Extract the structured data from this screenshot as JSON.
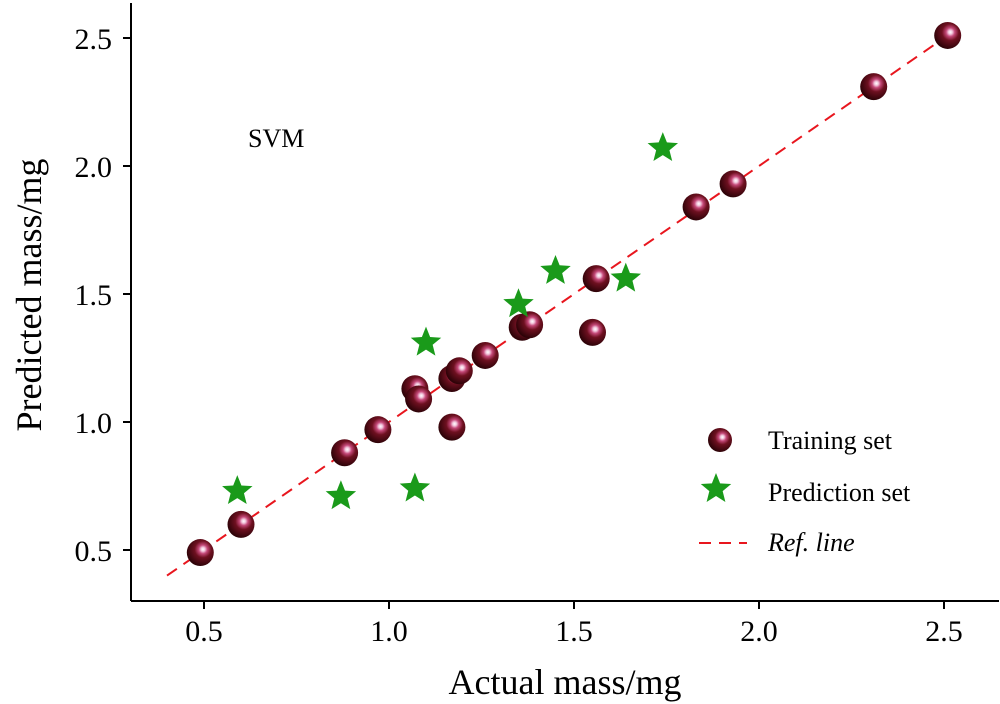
{
  "chart_data": {
    "type": "scatter",
    "xlabel": "Actual mass/mg",
    "ylabel": "Predicted mass/mg",
    "xlim": [
      0.32,
      2.66
    ],
    "ylim": [
      0.3,
      2.6
    ],
    "xticks": [
      0.5,
      1.0,
      1.5,
      2.0,
      2.5
    ],
    "yticks": [
      0.5,
      1.0,
      1.5,
      2.0,
      2.5
    ],
    "xtick_labels": [
      "0.5",
      "1.0",
      "1.5",
      "2.0",
      "2.5"
    ],
    "ytick_labels": [
      "0.5",
      "1.0",
      "1.5",
      "2.0",
      "2.5"
    ],
    "annotation": "SVM",
    "legend_position": "bottom-right",
    "series": [
      {
        "name": "Training set",
        "marker": "sphere",
        "color": "#5a0a14",
        "points": [
          [
            0.49,
            0.49
          ],
          [
            0.6,
            0.6
          ],
          [
            0.88,
            0.88
          ],
          [
            0.97,
            0.97
          ],
          [
            1.07,
            1.13
          ],
          [
            1.08,
            1.09
          ],
          [
            1.17,
            0.98
          ],
          [
            1.17,
            1.17
          ],
          [
            1.19,
            1.2
          ],
          [
            1.26,
            1.26
          ],
          [
            1.36,
            1.37
          ],
          [
            1.38,
            1.38
          ],
          [
            1.55,
            1.35
          ],
          [
            1.56,
            1.56
          ],
          [
            1.83,
            1.84
          ],
          [
            1.93,
            1.93
          ],
          [
            2.31,
            2.31
          ],
          [
            2.51,
            2.51
          ]
        ]
      },
      {
        "name": "Prediction set",
        "marker": "star",
        "color": "#1a9a1a",
        "points": [
          [
            0.59,
            0.73
          ],
          [
            0.87,
            0.71
          ],
          [
            1.07,
            0.74
          ],
          [
            1.1,
            1.31
          ],
          [
            1.35,
            1.46
          ],
          [
            1.45,
            1.59
          ],
          [
            1.64,
            1.56
          ],
          [
            1.74,
            2.07
          ]
        ]
      },
      {
        "name": "Ref. line",
        "marker": "dashed-line",
        "color": "#e8161e",
        "points": [
          [
            0.4,
            0.4
          ],
          [
            2.52,
            2.52
          ]
        ]
      }
    ]
  }
}
